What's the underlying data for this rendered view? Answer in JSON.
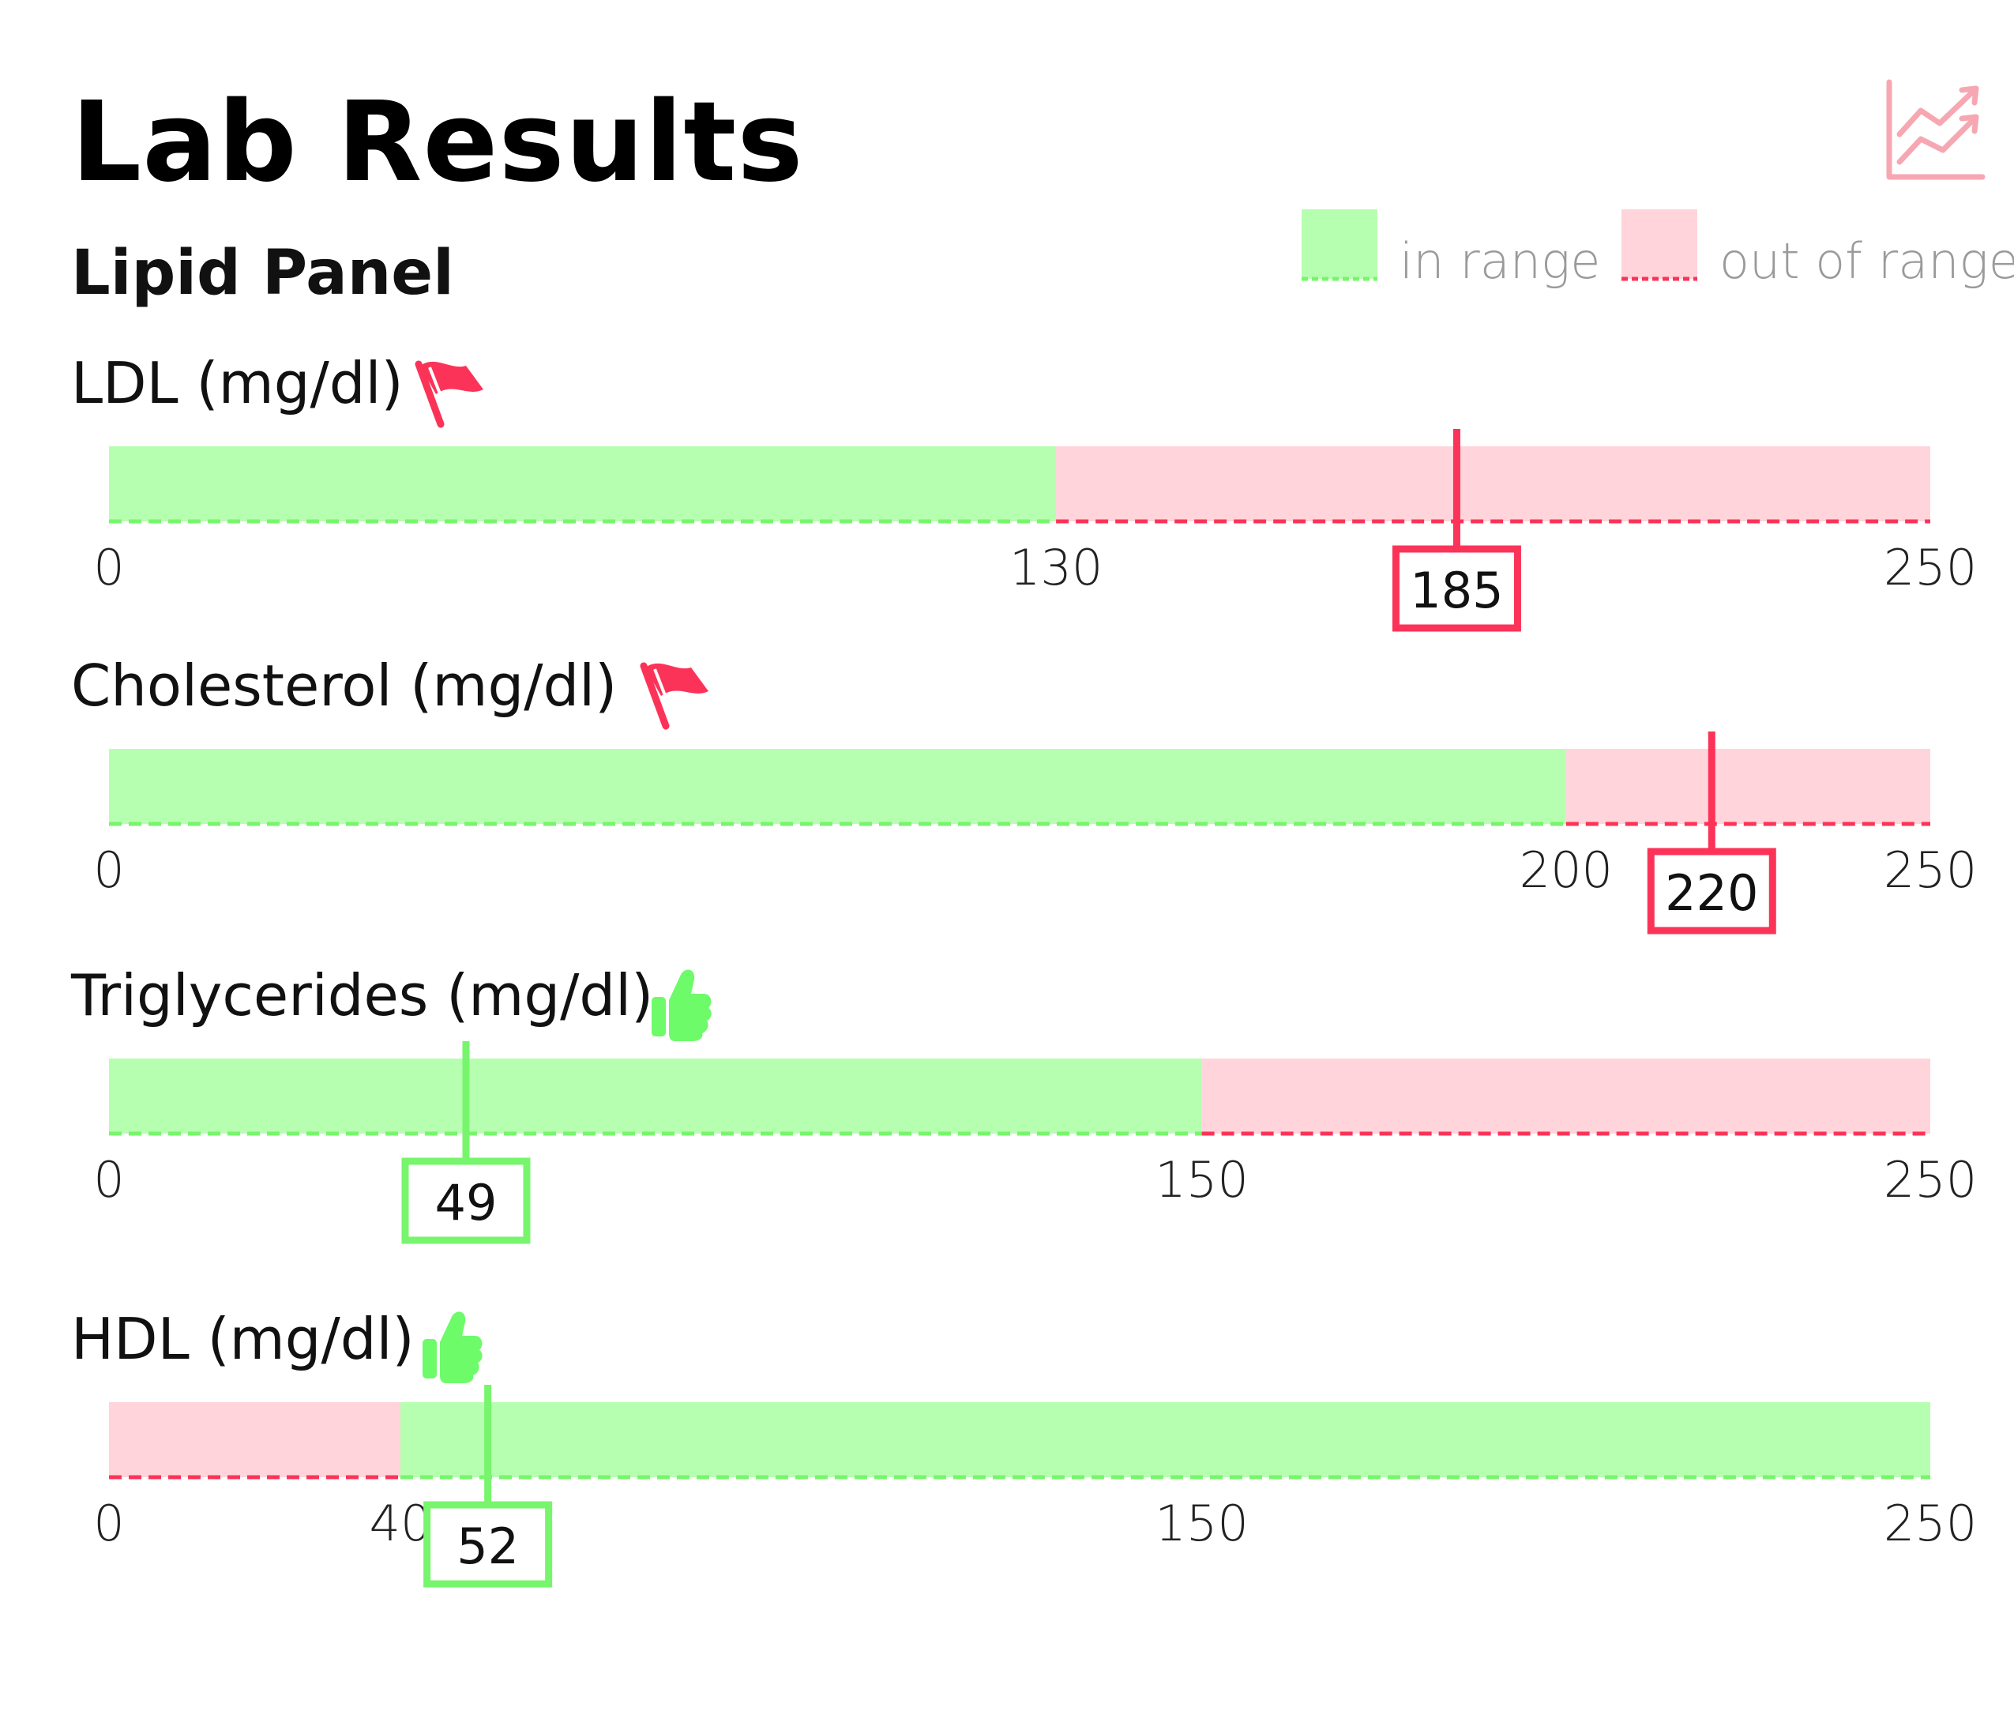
{
  "title": "Lab Results",
  "subtitle": "Lipid Panel",
  "header_icon": "trend-chart-icon",
  "colors": {
    "in_range_fill": "#b6ffb0",
    "out_range_fill": "#ffd4db",
    "in_range_line": "#77f56c",
    "out_range_line": "#fc3358",
    "flag": "#fc3358",
    "thumb": "#6dfb6a",
    "header_icon": "#f7a7b2"
  },
  "legend": [
    {
      "label": "in range",
      "status": "in"
    },
    {
      "label": "out of range",
      "status": "out"
    }
  ],
  "chart_data": {
    "type": "range-bar",
    "metrics": [
      {
        "label": "LDL (mg/dl)",
        "status_icon": "flag-icon",
        "status": "out",
        "min": 0,
        "max": 250,
        "segments": [
          {
            "from": 0,
            "to": 130,
            "range": "in"
          },
          {
            "from": 130,
            "to": 250,
            "range": "out"
          }
        ],
        "ticks": [
          0,
          130,
          250
        ],
        "value": 185
      },
      {
        "label": "Cholesterol (mg/dl)",
        "status_icon": "flag-icon",
        "status": "out",
        "min": 0,
        "max": 250,
        "segments": [
          {
            "from": 0,
            "to": 200,
            "range": "in"
          },
          {
            "from": 200,
            "to": 250,
            "range": "out"
          }
        ],
        "ticks": [
          0,
          200,
          250
        ],
        "value": 220
      },
      {
        "label": "Triglycerides (mg/dl)",
        "status_icon": "thumbs-up-icon",
        "status": "in",
        "min": 0,
        "max": 250,
        "segments": [
          {
            "from": 0,
            "to": 150,
            "range": "in"
          },
          {
            "from": 150,
            "to": 250,
            "range": "out"
          }
        ],
        "ticks": [
          0,
          150,
          250
        ],
        "value": 49
      },
      {
        "label": "HDL (mg/dl)",
        "status_icon": "thumbs-up-icon",
        "status": "in",
        "min": 0,
        "max": 250,
        "segments": [
          {
            "from": 0,
            "to": 40,
            "range": "out"
          },
          {
            "from": 40,
            "to": 250,
            "range": "in"
          }
        ],
        "ticks": [
          0,
          40,
          150,
          250
        ],
        "value": 52
      }
    ]
  }
}
